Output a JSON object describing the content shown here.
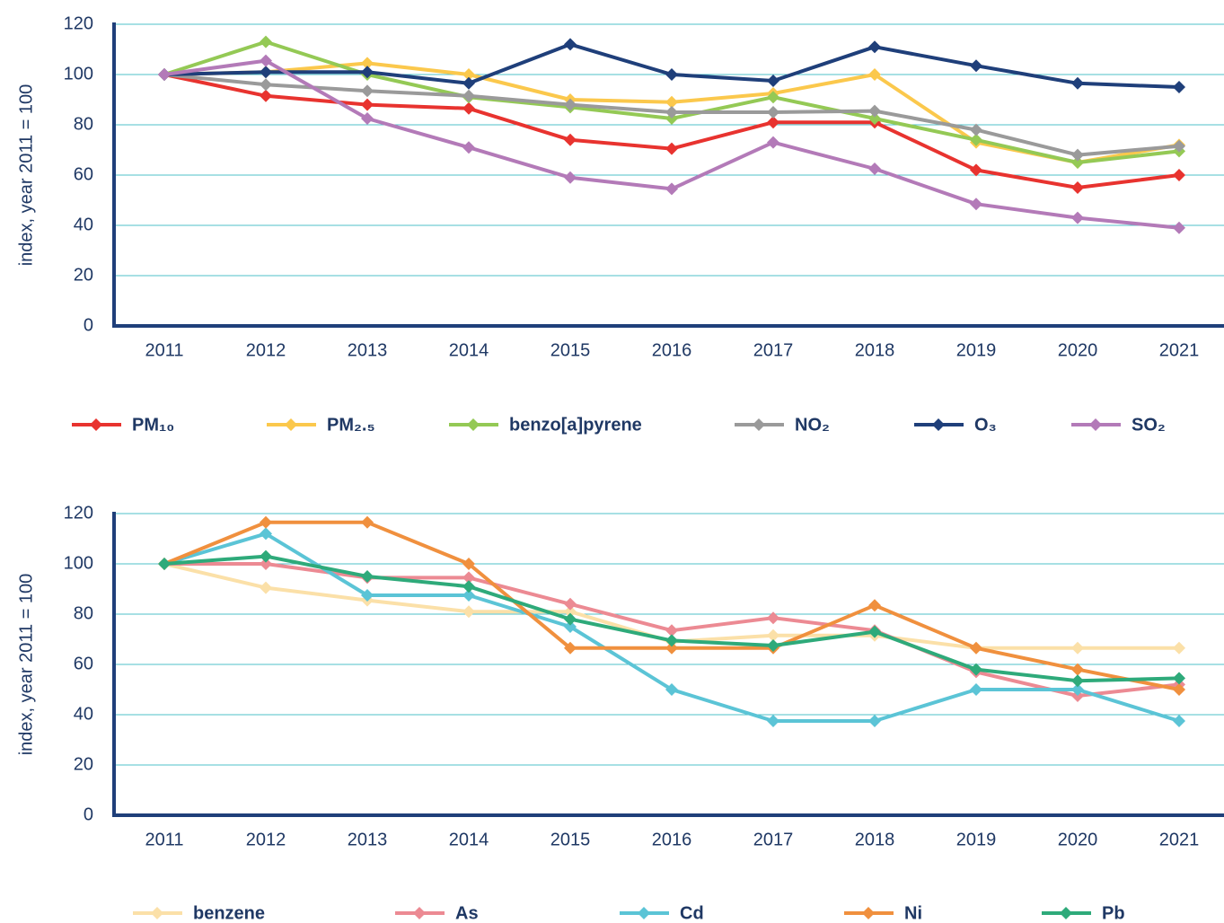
{
  "chart_data": [
    {
      "type": "line",
      "y_label": "index, year 2011 = 100",
      "categories": [
        "2011",
        "2012",
        "2013",
        "2014",
        "2015",
        "2016",
        "2017",
        "2018",
        "2019",
        "2020",
        "2021"
      ],
      "ylim": [
        0,
        120
      ],
      "yticks": [
        0,
        20,
        40,
        60,
        80,
        100,
        120
      ],
      "grid": true,
      "series": [
        {
          "name": "PM₁₀",
          "color": "#e8332f",
          "values": [
            100,
            91.5,
            88,
            86.5,
            74,
            70.5,
            81,
            81,
            62,
            55,
            60
          ]
        },
        {
          "name": "PM₂.₅",
          "color": "#fbc84c",
          "values": [
            100,
            101,
            104.5,
            100,
            90,
            89,
            92.5,
            100,
            73,
            65,
            72
          ]
        },
        {
          "name": "benzo[a]pyrene",
          "color": "#94c955",
          "values": [
            100,
            113,
            100,
            91,
            87,
            82.5,
            91,
            82.5,
            74,
            65,
            69.5
          ]
        },
        {
          "name": "NO₂",
          "color": "#9a9a9a",
          "values": [
            100,
            96,
            93.5,
            91.5,
            88,
            85,
            85,
            85.5,
            78,
            68,
            71.5
          ]
        },
        {
          "name": "O₃",
          "color": "#1f3f7a",
          "values": [
            100,
            101,
            101,
            96.5,
            112,
            100,
            97.5,
            111,
            103.5,
            96.5,
            95
          ]
        },
        {
          "name": "SO₂",
          "color": "#b37ab8",
          "values": [
            100,
            105.5,
            82.5,
            71,
            59,
            54.5,
            73,
            62.5,
            48.5,
            43,
            39
          ]
        }
      ]
    },
    {
      "type": "line",
      "y_label": "index, year 2011 = 100",
      "categories": [
        "2011",
        "2012",
        "2013",
        "2014",
        "2015",
        "2016",
        "2017",
        "2018",
        "2019",
        "2020",
        "2021"
      ],
      "ylim": [
        0,
        120
      ],
      "yticks": [
        0,
        20,
        40,
        60,
        80,
        100,
        120
      ],
      "grid": true,
      "series": [
        {
          "name": "benzene",
          "color": "#fbe0a8",
          "values": [
            100,
            90.5,
            85.5,
            81,
            81,
            69,
            71.5,
            71.5,
            66.5,
            66.5,
            66.5
          ]
        },
        {
          "name": "As",
          "color": "#ec8a93",
          "values": [
            100,
            100,
            94.5,
            94.5,
            84,
            73.5,
            78.5,
            73.5,
            57,
            47.5,
            52
          ]
        },
        {
          "name": "Cd",
          "color": "#5bc4d6",
          "values": [
            100,
            112,
            87.5,
            87.5,
            75,
            50,
            37.5,
            37.5,
            50,
            50,
            37.5
          ]
        },
        {
          "name": "Ni",
          "color": "#f0903e",
          "values": [
            100,
            116.5,
            116.5,
            100,
            66.5,
            66.5,
            66.5,
            83.5,
            66.5,
            58,
            50
          ]
        },
        {
          "name": "Pb",
          "color": "#2eaa7a",
          "values": [
            100,
            103,
            95,
            91,
            78,
            69.5,
            67.5,
            73,
            58,
            53.5,
            54.5
          ]
        }
      ]
    }
  ]
}
